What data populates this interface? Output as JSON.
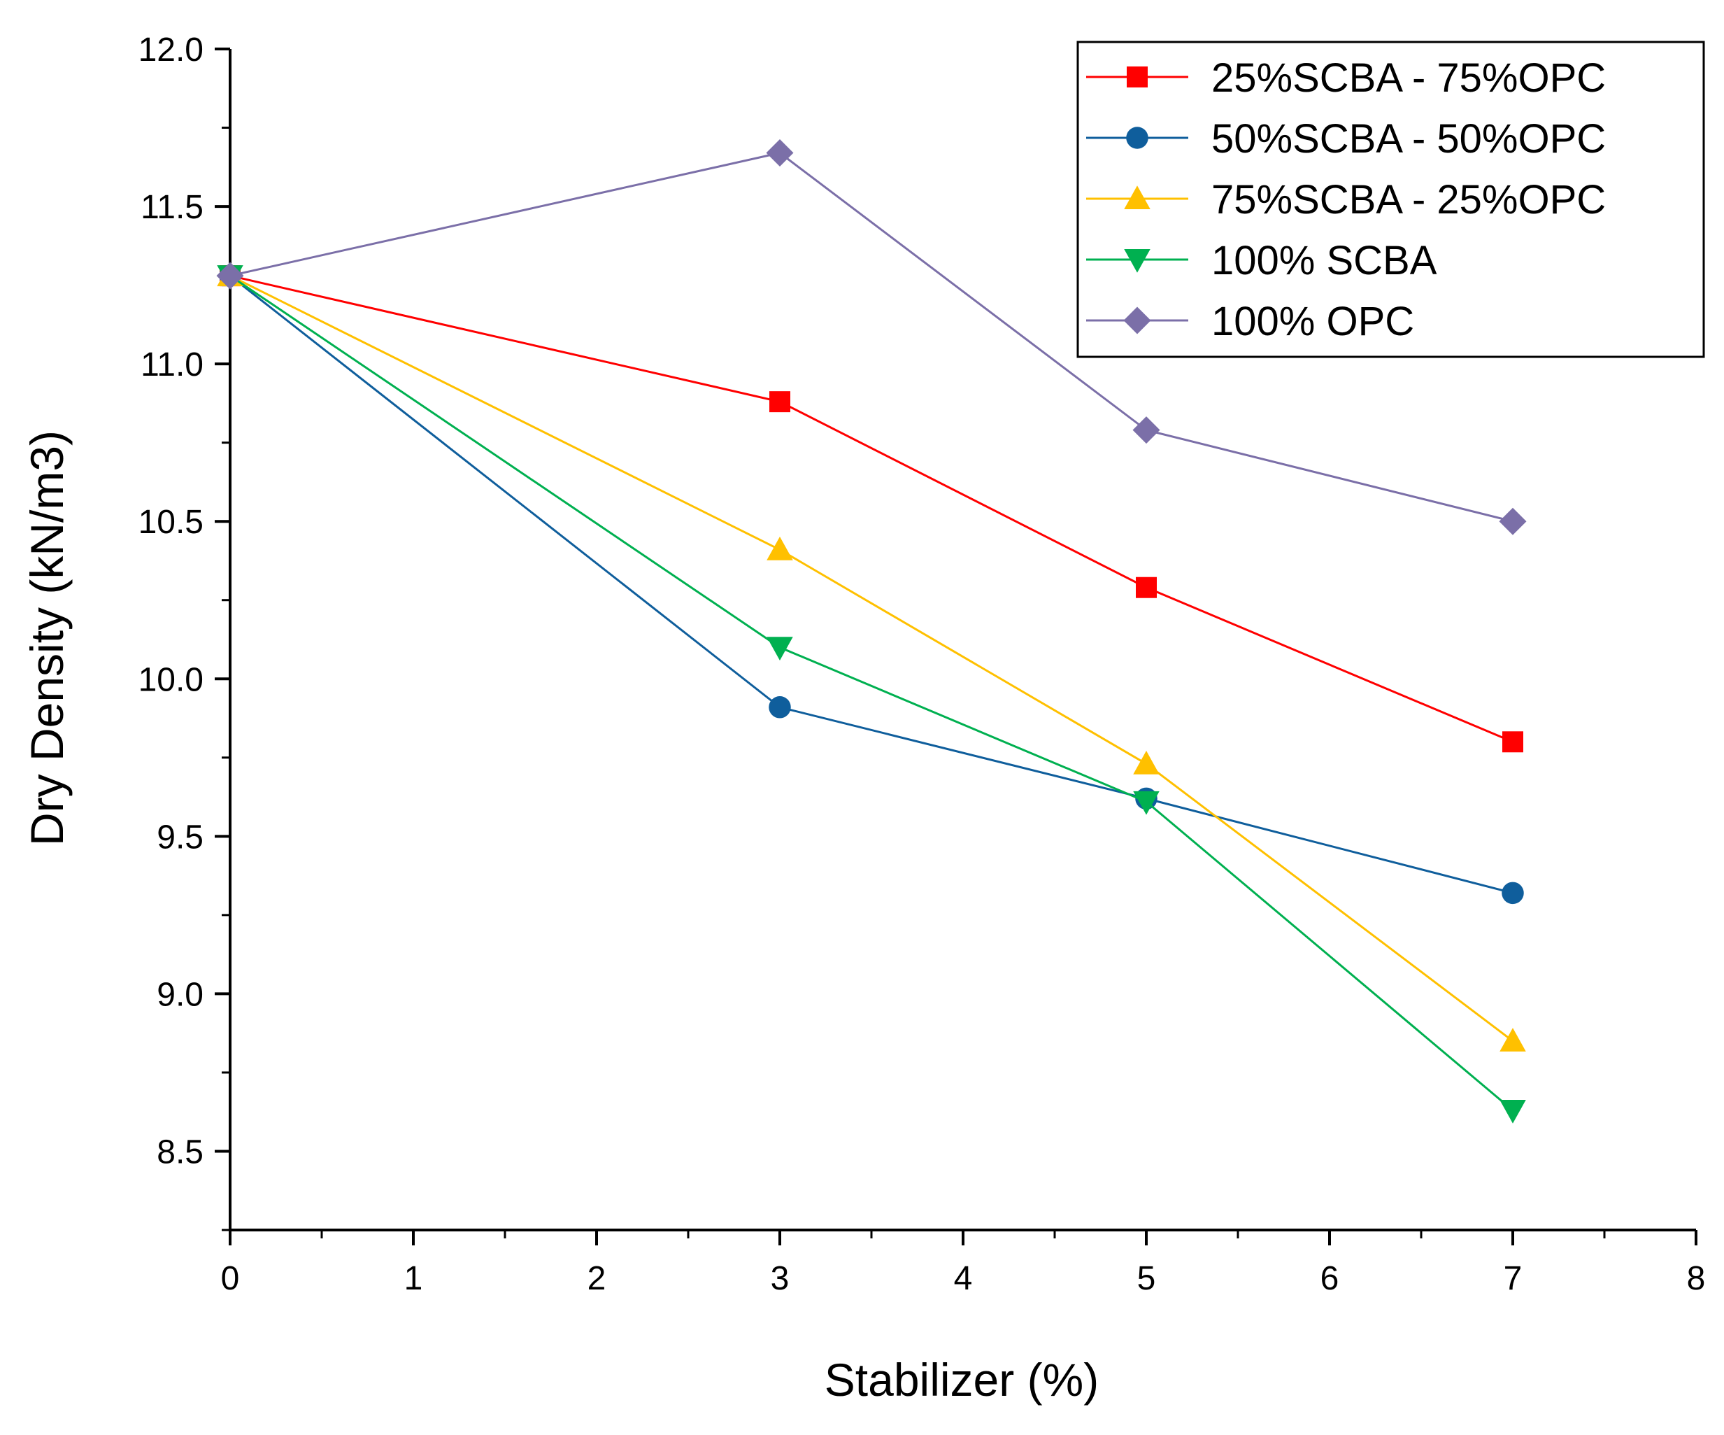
{
  "chart_data": {
    "type": "line",
    "title": "",
    "xlabel": "Stabilizer (%)",
    "ylabel": "Dry Density (kN/m3)",
    "xlim": [
      0,
      8
    ],
    "ylim": [
      8.25,
      12.0
    ],
    "xticks": [
      0,
      1,
      2,
      3,
      4,
      5,
      6,
      7,
      8
    ],
    "yticks": [
      8.5,
      9.0,
      9.5,
      10.0,
      10.5,
      11.0,
      11.5,
      12.0
    ],
    "xtick_labels": [
      "0",
      "1",
      "2",
      "3",
      "4",
      "5",
      "6",
      "7",
      "8"
    ],
    "ytick_labels": [
      "8.5",
      "9.0",
      "9.5",
      "10.0",
      "10.5",
      "11.0",
      "11.5",
      "12.0"
    ],
    "grid": false,
    "legend_position": "top-right",
    "series": [
      {
        "name": "25%SCBA - 75%OPC",
        "color": "#ff0000",
        "marker": "square",
        "x": [
          0,
          3,
          5,
          7
        ],
        "y": [
          11.28,
          10.88,
          10.29,
          9.8
        ]
      },
      {
        "name": "50%SCBA - 50%OPC",
        "color": "#0f5e9c",
        "marker": "circle",
        "x": [
          0,
          3,
          5,
          7
        ],
        "y": [
          11.28,
          9.91,
          9.62,
          9.32
        ]
      },
      {
        "name": "75%SCBA - 25%OPC",
        "color": "#ffc000",
        "marker": "triangle-up",
        "x": [
          0,
          3,
          5,
          7
        ],
        "y": [
          11.28,
          10.41,
          9.73,
          8.85
        ]
      },
      {
        "name": "100% SCBA",
        "color": "#00b050",
        "marker": "triangle-down",
        "x": [
          0,
          3,
          5,
          7
        ],
        "y": [
          11.28,
          10.1,
          9.61,
          8.63
        ]
      },
      {
        "name": "100% OPC",
        "color": "#7b6fa8",
        "marker": "diamond",
        "x": [
          0,
          3,
          5,
          7
        ],
        "y": [
          11.28,
          11.67,
          10.79,
          10.5
        ]
      }
    ]
  }
}
